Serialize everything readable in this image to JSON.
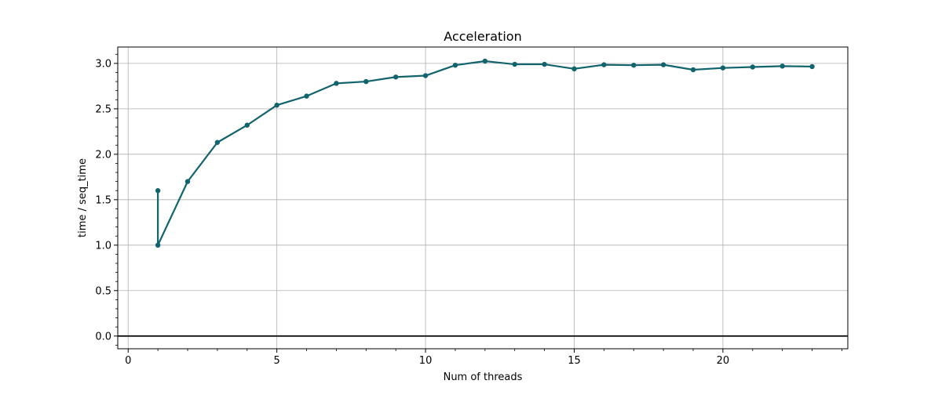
{
  "chart_data": {
    "type": "line",
    "title": "Acceleration",
    "xlabel": "Num of threads",
    "ylabel": "time / seq_time",
    "xlim": [
      -0.35,
      24.2
    ],
    "ylim": [
      -0.14,
      3.18
    ],
    "xticks": [
      0,
      5,
      10,
      15,
      20
    ],
    "xtick_labels": [
      "0",
      "5",
      "10",
      "15",
      "20"
    ],
    "yticks": [
      0.0,
      0.5,
      1.0,
      1.5,
      2.0,
      2.5,
      3.0
    ],
    "ytick_labels": [
      "0.0",
      "0.5",
      "1.0",
      "1.5",
      "2.0",
      "2.5",
      "3.0"
    ],
    "grid": true,
    "horizontal_reference_line": 0.0,
    "series": [
      {
        "color": "#11636c",
        "x": [
          1,
          1,
          2,
          3,
          4,
          5,
          6,
          7,
          8,
          9,
          10,
          11,
          12,
          13,
          14,
          15,
          16,
          17,
          18,
          19,
          20,
          21,
          22,
          23
        ],
        "y": [
          1.6,
          1.0,
          1.7,
          2.13,
          2.32,
          2.54,
          2.64,
          2.78,
          2.8,
          2.85,
          2.865,
          2.98,
          3.025,
          2.99,
          2.99,
          2.94,
          2.985,
          2.98,
          2.985,
          2.93,
          2.95,
          2.96,
          2.97,
          2.965
        ]
      }
    ]
  }
}
